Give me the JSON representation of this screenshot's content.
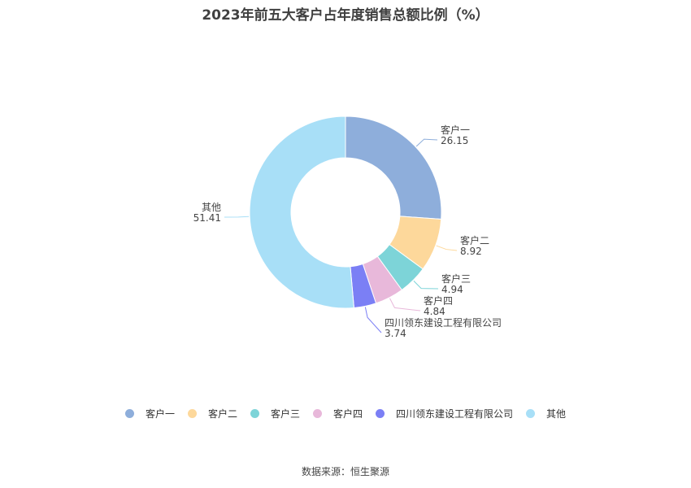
{
  "chart_data": {
    "type": "pie",
    "donut": true,
    "title": "2023年前五大客户占年度销售总额比例（%）",
    "categories": [
      "客户一",
      "客户二",
      "客户三",
      "客户四",
      "四川领东建设工程有限公司",
      "其他"
    ],
    "values": [
      26.15,
      8.92,
      4.94,
      4.84,
      3.74,
      51.41
    ],
    "value_labels": [
      "26.15",
      "8.92",
      "4.94",
      "4.84",
      "3.74",
      "51.41"
    ],
    "colors": [
      "#8eaedb",
      "#fdd89b",
      "#7dd4d8",
      "#e8b8da",
      "#7b7ff5",
      "#a8dff7"
    ],
    "legend_position": "bottom-center",
    "source": "数据来源：恒生聚源"
  }
}
